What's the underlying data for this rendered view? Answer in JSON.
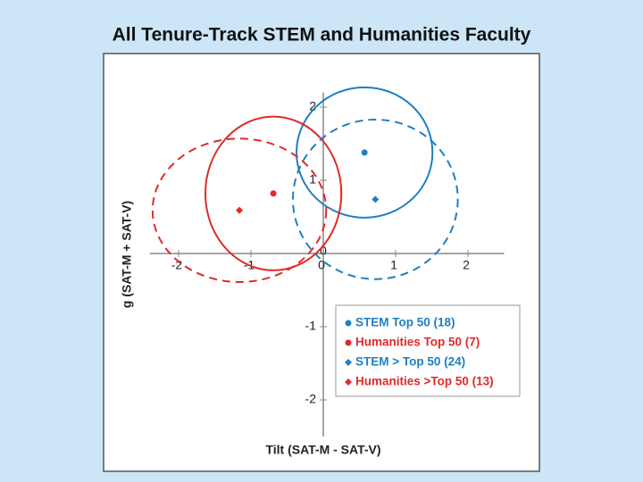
{
  "chart_data": {
    "type": "scatter",
    "title": "All Tenure-Track STEM and Humanities Faculty",
    "x_label": "Tilt (SAT-M - SAT-V)",
    "y_label": "g (SAT-M + SAT-V)",
    "xlim": [
      -2.4,
      2.5
    ],
    "ylim": [
      -2.5,
      2.2
    ],
    "xticks": [
      -2,
      -1,
      0,
      1,
      2
    ],
    "yticks": [
      -2,
      -1,
      1,
      2
    ],
    "series": [
      {
        "name": "STEM Top 50 (18)",
        "color": "#1f7fc0",
        "marker": "circle",
        "line_style": "solid",
        "x": [
          0.57
        ],
        "y": [
          1.38
        ],
        "spread_x": [
          0.94
        ],
        "spread_y": [
          0.89
        ]
      },
      {
        "name": "Humanities Top 50 (7)",
        "color": "#e02a2a",
        "marker": "circle",
        "line_style": "solid",
        "x": [
          -0.69
        ],
        "y": [
          0.82
        ],
        "spread_x": [
          0.94
        ],
        "spread_y": [
          1.05
        ]
      },
      {
        "name": "STEM > Top 50 (24)",
        "color": "#1f7fc0",
        "marker": "diamond",
        "line_style": "dashed",
        "x": [
          0.72
        ],
        "y": [
          0.74
        ],
        "spread_x": [
          1.14
        ],
        "spread_y": [
          1.09
        ]
      },
      {
        "name": "Humanities >Top 50 (13)",
        "color": "#e02a2a",
        "marker": "diamond",
        "line_style": "dashed",
        "x": [
          -1.16
        ],
        "y": [
          0.59
        ],
        "spread_x": [
          1.2
        ],
        "spread_y": [
          0.98
        ]
      }
    ]
  }
}
